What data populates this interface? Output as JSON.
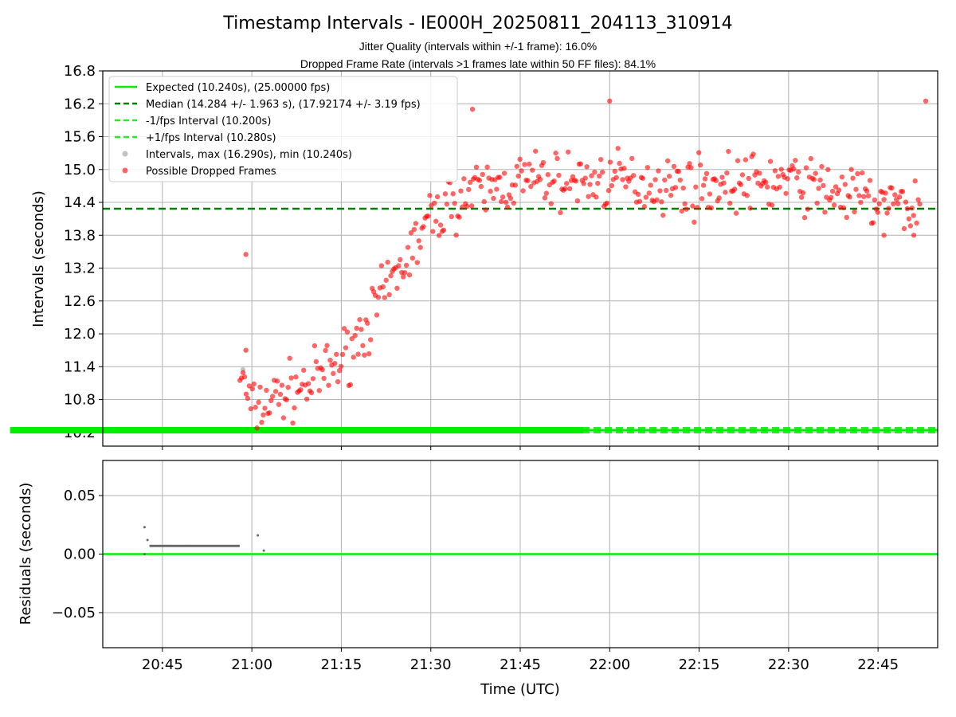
{
  "chart_data": [
    {
      "type": "scatter",
      "title": "Timestamp Intervals - IE000H_20250811_204113_310914",
      "subtitle_lines": [
        "Jitter Quality (intervals within +/-1 frame): 16.0%",
        "Dropped Frame Rate (intervals >1 frames late within 50 FF files): 84.1%"
      ],
      "xlabel": "",
      "ylabel": "Intervals (seconds)",
      "ylim": [
        9.95,
        16.8
      ],
      "yticks": [
        "16.8",
        "16.2",
        "15.6",
        "15.0",
        "14.4",
        "13.8",
        "13.2",
        "12.6",
        "12.0",
        "11.4",
        "10.8",
        "10.2"
      ],
      "ytick_values": [
        16.8,
        16.2,
        15.6,
        15.0,
        14.4,
        13.8,
        13.2,
        12.6,
        12.0,
        11.4,
        10.8,
        10.2
      ],
      "grid": true,
      "legend_position": "top-left",
      "hlines": [
        {
          "name": "Expected (10.240s), (25.00000 fps)",
          "y": 10.24,
          "color": "#00ee00",
          "style": "solid"
        },
        {
          "name": "Median (14.284 +/- 1.963 s), (17.92174 +/- 3.19 fps)",
          "y": 14.284,
          "color": "#008000",
          "style": "dashed"
        },
        {
          "name": "-1/fps Interval (10.200s)",
          "y": 10.2,
          "color": "#22ee22",
          "style": "dashed"
        },
        {
          "name": "+1/fps Interval (10.280s)",
          "y": 10.28,
          "color": "#22ee22",
          "style": "dashed"
        }
      ],
      "series": [
        {
          "name": "Intervals, max (16.290s), min (10.240s)",
          "color": "#999999",
          "marker": "circle"
        },
        {
          "name": "Possible Dropped Frames",
          "color": "#ff0000",
          "marker": "circle"
        }
      ],
      "normal_intervals": {
        "x_start": "20:42",
        "x_end": "20:58",
        "y": 10.24,
        "extra_points": [
          {
            "x": "20:58.5",
            "y": 11.35
          },
          {
            "x": "21:01",
            "y": 10.25
          }
        ]
      },
      "dropped_frames_trend": [
        {
          "x": "20:58",
          "y": 11.3
        },
        {
          "x": "21:00",
          "y": 10.6
        },
        {
          "x": "21:05",
          "y": 10.9
        },
        {
          "x": "21:10",
          "y": 11.1
        },
        {
          "x": "21:15",
          "y": 11.5
        },
        {
          "x": "21:20",
          "y": 12.3
        },
        {
          "x": "21:25",
          "y": 13.2
        },
        {
          "x": "21:30",
          "y": 14.1
        },
        {
          "x": "21:35",
          "y": 14.5
        },
        {
          "x": "21:45",
          "y": 14.8
        },
        {
          "x": "22:00",
          "y": 14.8
        },
        {
          "x": "22:15",
          "y": 14.7
        },
        {
          "x": "22:30",
          "y": 14.8
        },
        {
          "x": "22:45",
          "y": 14.4
        },
        {
          "x": "22:52",
          "y": 14.3
        }
      ],
      "dropped_frames_outliers": [
        {
          "x": "20:59",
          "y": 13.45
        },
        {
          "x": "20:59",
          "y": 11.7
        },
        {
          "x": "21:37",
          "y": 16.1
        },
        {
          "x": "22:00",
          "y": 16.25
        },
        {
          "x": "22:53",
          "y": 16.25
        },
        {
          "x": "22:46",
          "y": 13.8
        },
        {
          "x": "22:51",
          "y": 13.8
        }
      ],
      "dropped_points_visible_count": 438
    },
    {
      "type": "scatter",
      "xlabel": "Time (UTC)",
      "ylabel": "Residuals (seconds)",
      "ylim": [
        -0.08,
        0.08
      ],
      "yticks": [
        "0.05",
        "0.00",
        "−0.05"
      ],
      "ytick_values": [
        0.05,
        0.0,
        -0.05
      ],
      "xticks": [
        "20:45",
        "21:00",
        "21:15",
        "21:30",
        "21:45",
        "22:00",
        "22:15",
        "22:30",
        "22:45"
      ],
      "x_range": [
        "20:35",
        "22:55"
      ],
      "grid": true,
      "zero_line_color": "#00ee00",
      "residuals": {
        "x_start": "20:43",
        "x_end": "20:58",
        "y": 0.007,
        "extra_points": [
          {
            "x": "20:42",
            "y": 0.023
          },
          {
            "x": "20:42",
            "y": 0.0
          },
          {
            "x": "20:42.5",
            "y": 0.012
          },
          {
            "x": "21:01",
            "y": 0.016
          },
          {
            "x": "21:02",
            "y": 0.003
          }
        ]
      }
    }
  ]
}
